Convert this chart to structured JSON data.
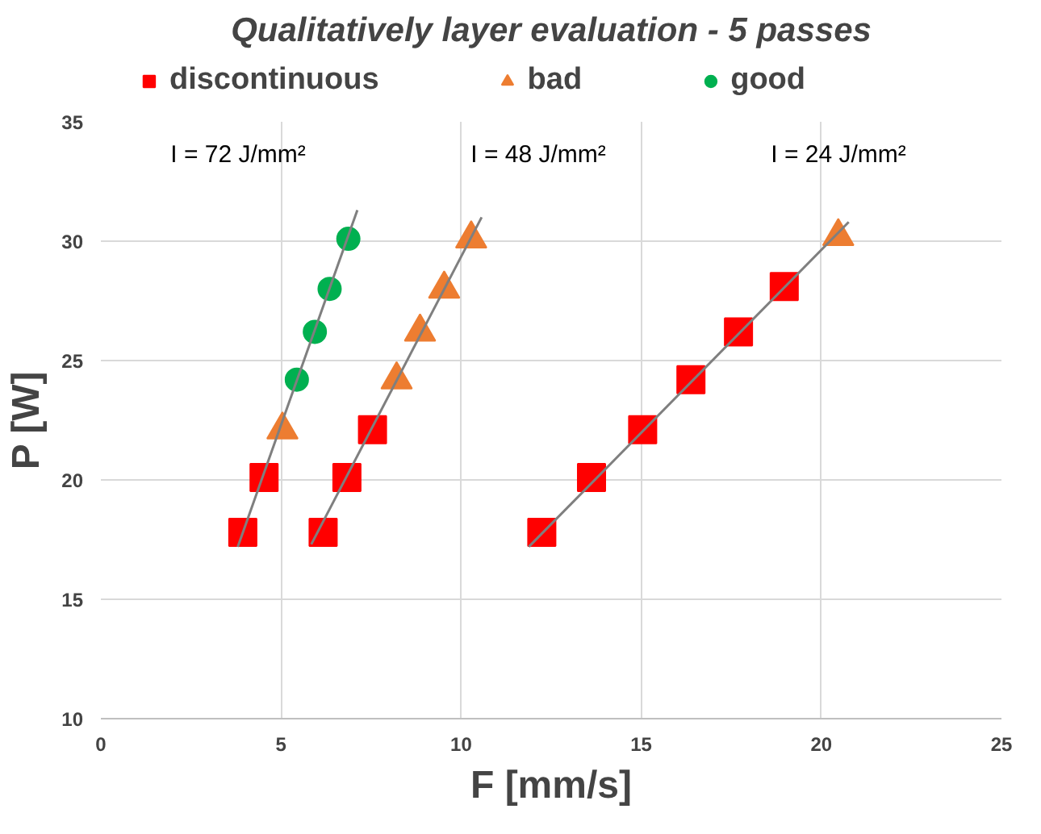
{
  "chart_data": {
    "type": "scatter",
    "title": "Qualitatively layer evaluation - 5 passes",
    "xlabel": "F [mm/s]",
    "ylabel": "P [W]",
    "xlim": [
      0,
      25
    ],
    "ylim": [
      10,
      35
    ],
    "xticks": [
      0,
      5,
      10,
      15,
      20,
      25
    ],
    "yticks": [
      10,
      15,
      20,
      25,
      30,
      35
    ],
    "grid": true,
    "legend": "top",
    "series": [
      {
        "name": "discontinuous",
        "color": "#ff0000",
        "marker": "square",
        "x": [
          3.94,
          4.53,
          6.17,
          6.83,
          7.54,
          12.24,
          13.62,
          15.04,
          16.38,
          17.7,
          18.97
        ],
        "values": [
          17.8,
          20.1,
          17.8,
          20.1,
          22.1,
          17.8,
          20.1,
          22.1,
          24.2,
          26.2,
          28.1
        ]
      },
      {
        "name": "bad",
        "color": "#ed7d31",
        "marker": "triangle",
        "x": [
          5.04,
          8.21,
          8.86,
          9.53,
          10.28,
          20.47
        ],
        "values": [
          22.1,
          24.2,
          26.2,
          28.0,
          30.1,
          30.2
        ]
      },
      {
        "name": "good",
        "color": "#00b050",
        "marker": "circle",
        "x": [
          5.44,
          5.94,
          6.35,
          6.87
        ],
        "values": [
          24.2,
          26.2,
          28.0,
          30.1
        ]
      },
      {
        "type": "line",
        "color": "#7f7f7f",
        "marker": "none",
        "x": [
          3.8,
          7.12
        ],
        "values": [
          17.2,
          31.3
        ]
      },
      {
        "type": "line",
        "color": "#7f7f7f",
        "marker": "none",
        "x": [
          5.84,
          10.57
        ],
        "values": [
          17.3,
          31.0
        ]
      },
      {
        "type": "line",
        "color": "#7f7f7f",
        "marker": "none",
        "x": [
          11.88,
          20.76
        ],
        "values": [
          17.2,
          30.8
        ]
      }
    ],
    "annotations": [
      "I = 72 J/mm²",
      "I = 48 J/mm²",
      "I = 24 J/mm²"
    ]
  }
}
